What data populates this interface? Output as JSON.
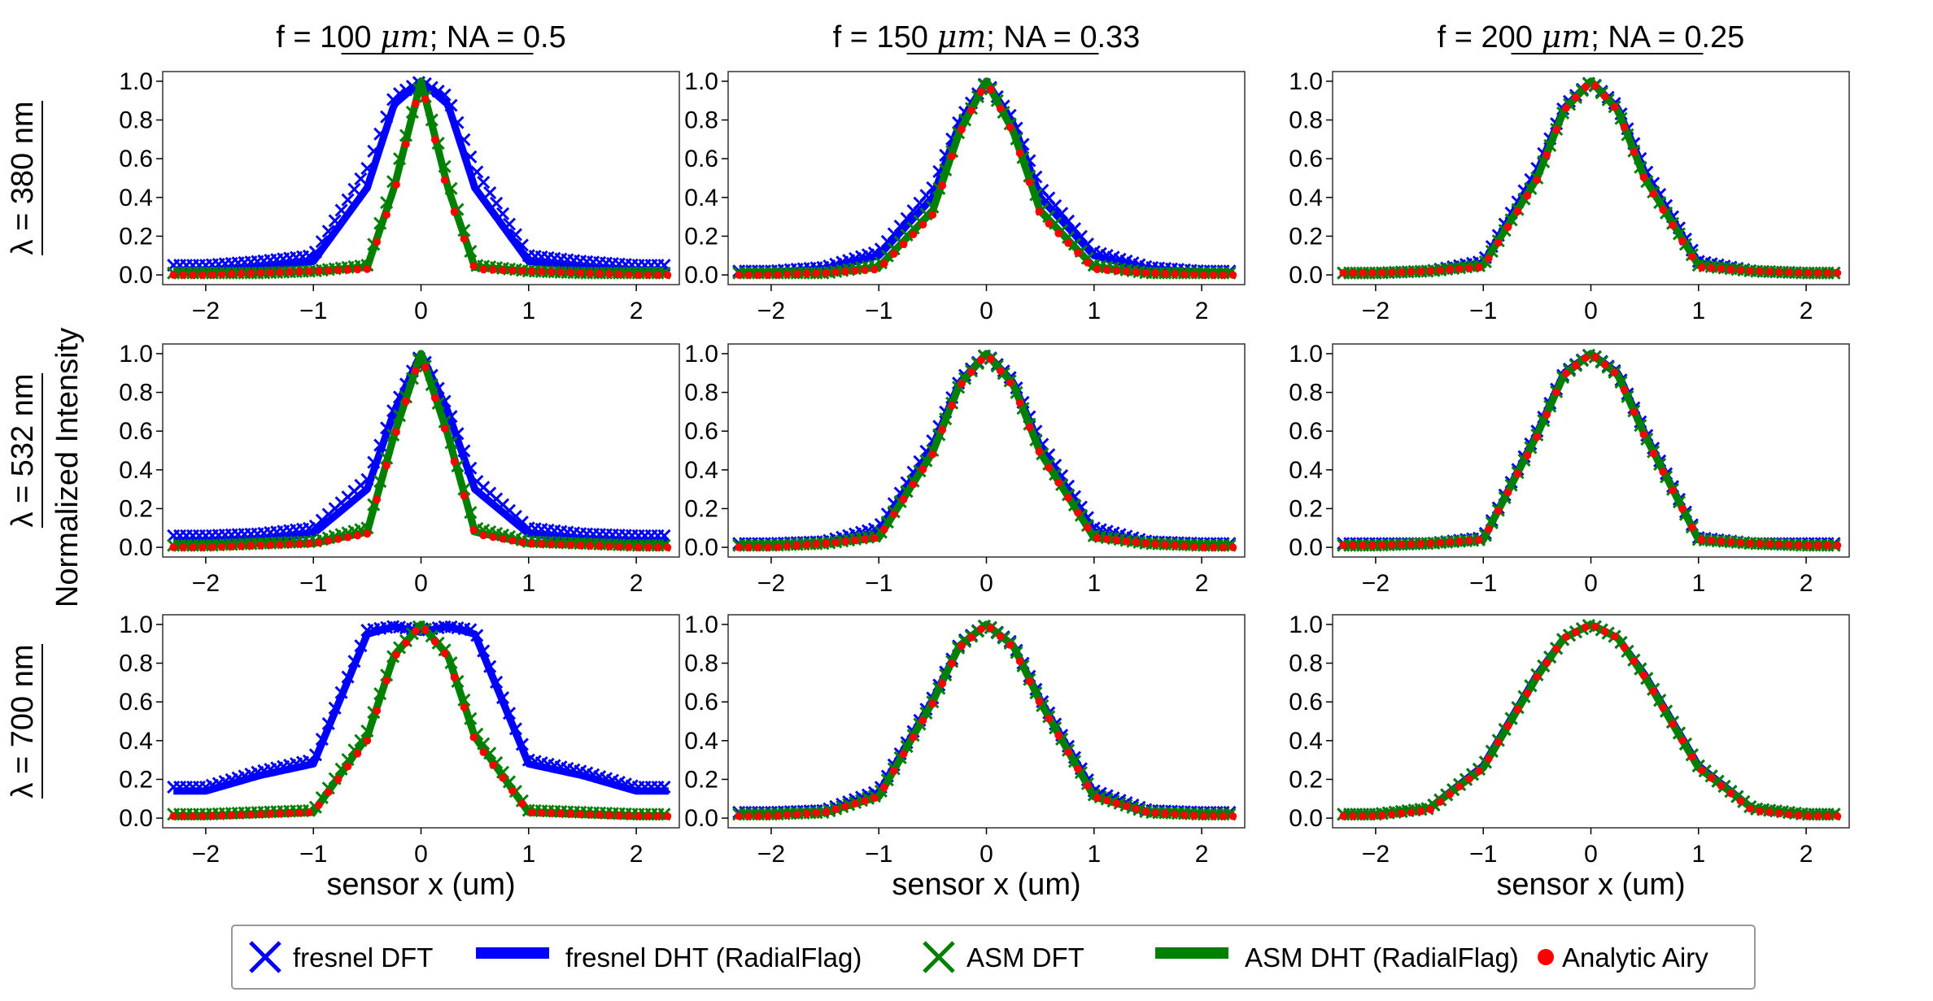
{
  "figure": {
    "column_titles": [
      {
        "prefix": "f = 100 ",
        "unit": "μm",
        "suffix": "; NA = 0.5"
      },
      {
        "prefix": "f = 150 ",
        "unit": "μm",
        "suffix": "; NA = 0.33"
      },
      {
        "prefix": "f = 200 ",
        "unit": "μm",
        "suffix": "; NA = 0.25"
      }
    ],
    "row_labels": [
      "λ = 380 nm",
      "λ = 532 nm",
      "λ = 700 nm"
    ],
    "ylabel": "Normalized Intensity",
    "xlabel": "sensor x (um)",
    "x_ticks": [
      -2,
      -1,
      0,
      1,
      2
    ],
    "y_ticks": [
      "0.0",
      "0.2",
      "0.4",
      "0.6",
      "0.8",
      "1.0"
    ],
    "legend": [
      {
        "label": "fresnel DFT",
        "marker": "x",
        "color": "#0000ff"
      },
      {
        "label": "fresnel DHT (RadialFlag)",
        "marker": "line",
        "color": "#0000ff"
      },
      {
        "label": "ASM DFT",
        "marker": "x",
        "color": "#008000"
      },
      {
        "label": "ASM DHT (RadialFlag)",
        "marker": "line",
        "color": "#008000"
      },
      {
        "label": "Analytic Airy",
        "marker": "dot",
        "color": "#ff0000"
      }
    ],
    "colors": {
      "fresnel": "#0000ff",
      "asm": "#008000",
      "airy": "#ff0000"
    }
  },
  "chart_data": [
    {
      "type": "line",
      "row": 0,
      "col": 0,
      "xlim": [
        -2.4,
        2.4
      ],
      "ylim": [
        -0.05,
        1.05
      ],
      "x": [
        -2.0,
        -1.5,
        -1.0,
        -0.5,
        -0.25,
        0.0,
        0.25,
        0.5,
        1.0,
        1.5,
        2.0
      ],
      "series": [
        {
          "name": "fresnel DFT",
          "values": [
            0.05,
            0.07,
            0.1,
            0.55,
            0.92,
            1.0,
            0.92,
            0.55,
            0.1,
            0.07,
            0.05
          ]
        },
        {
          "name": "fresnel DHT (RadialFlag)",
          "values": [
            0.02,
            0.04,
            0.07,
            0.45,
            0.88,
            1.0,
            0.88,
            0.45,
            0.07,
            0.04,
            0.02
          ]
        },
        {
          "name": "ASM DFT",
          "values": [
            0.01,
            0.01,
            0.02,
            0.05,
            0.5,
            1.0,
            0.5,
            0.05,
            0.02,
            0.01,
            0.01
          ]
        },
        {
          "name": "ASM DHT (RadialFlag)",
          "values": [
            0.01,
            0.01,
            0.02,
            0.04,
            0.45,
            1.0,
            0.45,
            0.04,
            0.02,
            0.01,
            0.01
          ]
        },
        {
          "name": "Analytic Airy",
          "values": [
            0.0,
            0.01,
            0.02,
            0.03,
            0.42,
            1.0,
            0.42,
            0.03,
            0.02,
            0.01,
            0.0
          ]
        }
      ]
    },
    {
      "type": "line",
      "row": 0,
      "col": 1,
      "xlim": [
        -2.4,
        2.4
      ],
      "ylim": [
        -0.05,
        1.05
      ],
      "x": [
        -2.0,
        -1.5,
        -1.0,
        -0.5,
        -0.25,
        0.0,
        0.25,
        0.5,
        1.0,
        1.5,
        2.0
      ],
      "series": [
        {
          "name": "fresnel DFT",
          "values": [
            0.02,
            0.04,
            0.12,
            0.45,
            0.8,
            1.0,
            0.8,
            0.45,
            0.12,
            0.04,
            0.02
          ]
        },
        {
          "name": "fresnel DHT (RadialFlag)",
          "values": [
            0.01,
            0.03,
            0.1,
            0.4,
            0.78,
            1.0,
            0.78,
            0.4,
            0.1,
            0.03,
            0.01
          ]
        },
        {
          "name": "ASM DFT",
          "values": [
            0.01,
            0.01,
            0.05,
            0.35,
            0.75,
            1.0,
            0.75,
            0.35,
            0.05,
            0.01,
            0.01
          ]
        },
        {
          "name": "ASM DHT (RadialFlag)",
          "values": [
            0.01,
            0.01,
            0.04,
            0.33,
            0.74,
            1.0,
            0.74,
            0.33,
            0.04,
            0.01,
            0.01
          ]
        },
        {
          "name": "Analytic Airy",
          "values": [
            0.0,
            0.01,
            0.03,
            0.31,
            0.73,
            1.0,
            0.73,
            0.31,
            0.03,
            0.01,
            0.0
          ]
        }
      ]
    },
    {
      "type": "line",
      "row": 0,
      "col": 2,
      "xlim": [
        -2.4,
        2.4
      ],
      "ylim": [
        -0.05,
        1.05
      ],
      "x": [
        -2.0,
        -1.5,
        -1.0,
        -0.5,
        -0.25,
        0.0,
        0.25,
        0.5,
        1.0,
        1.5,
        2.0
      ],
      "series": [
        {
          "name": "fresnel DFT",
          "values": [
            0.01,
            0.02,
            0.07,
            0.55,
            0.87,
            1.0,
            0.87,
            0.55,
            0.07,
            0.02,
            0.01
          ]
        },
        {
          "name": "fresnel DHT (RadialFlag)",
          "values": [
            0.01,
            0.02,
            0.06,
            0.53,
            0.86,
            1.0,
            0.86,
            0.53,
            0.06,
            0.02,
            0.01
          ]
        },
        {
          "name": "ASM DFT",
          "values": [
            0.01,
            0.02,
            0.05,
            0.5,
            0.85,
            1.0,
            0.85,
            0.5,
            0.05,
            0.02,
            0.01
          ]
        },
        {
          "name": "ASM DHT (RadialFlag)",
          "values": [
            0.01,
            0.02,
            0.05,
            0.5,
            0.85,
            1.0,
            0.85,
            0.5,
            0.05,
            0.02,
            0.01
          ]
        },
        {
          "name": "Analytic Airy",
          "values": [
            0.01,
            0.02,
            0.04,
            0.49,
            0.85,
            1.0,
            0.85,
            0.49,
            0.04,
            0.02,
            0.01
          ]
        }
      ]
    },
    {
      "type": "line",
      "row": 1,
      "col": 0,
      "xlim": [
        -2.4,
        2.4
      ],
      "ylim": [
        -0.05,
        1.05
      ],
      "x": [
        -2.0,
        -1.5,
        -1.0,
        -0.5,
        -0.25,
        0.0,
        0.25,
        0.5,
        1.0,
        1.5,
        2.0
      ],
      "series": [
        {
          "name": "fresnel DFT",
          "values": [
            0.06,
            0.07,
            0.1,
            0.35,
            0.72,
            1.0,
            0.72,
            0.35,
            0.1,
            0.07,
            0.06
          ]
        },
        {
          "name": "fresnel DHT (RadialFlag)",
          "values": [
            0.03,
            0.04,
            0.07,
            0.3,
            0.7,
            1.0,
            0.7,
            0.3,
            0.07,
            0.04,
            0.03
          ]
        },
        {
          "name": "ASM DFT",
          "values": [
            0.01,
            0.02,
            0.03,
            0.1,
            0.6,
            1.0,
            0.6,
            0.1,
            0.03,
            0.02,
            0.01
          ]
        },
        {
          "name": "ASM DHT (RadialFlag)",
          "values": [
            0.01,
            0.02,
            0.02,
            0.08,
            0.58,
            1.0,
            0.58,
            0.08,
            0.02,
            0.02,
            0.01
          ]
        },
        {
          "name": "Analytic Airy",
          "values": [
            0.0,
            0.01,
            0.02,
            0.07,
            0.56,
            1.0,
            0.56,
            0.07,
            0.02,
            0.01,
            0.0
          ]
        }
      ]
    },
    {
      "type": "line",
      "row": 1,
      "col": 1,
      "xlim": [
        -2.4,
        2.4
      ],
      "ylim": [
        -0.05,
        1.05
      ],
      "x": [
        -2.0,
        -1.5,
        -1.0,
        -0.5,
        -0.25,
        0.0,
        0.25,
        0.5,
        1.0,
        1.5,
        2.0
      ],
      "series": [
        {
          "name": "fresnel DFT",
          "values": [
            0.02,
            0.03,
            0.1,
            0.55,
            0.86,
            1.0,
            0.86,
            0.55,
            0.1,
            0.03,
            0.02
          ]
        },
        {
          "name": "fresnel DHT (RadialFlag)",
          "values": [
            0.01,
            0.02,
            0.08,
            0.52,
            0.85,
            1.0,
            0.85,
            0.52,
            0.08,
            0.02,
            0.01
          ]
        },
        {
          "name": "ASM DFT",
          "values": [
            0.01,
            0.02,
            0.06,
            0.5,
            0.84,
            1.0,
            0.84,
            0.5,
            0.06,
            0.02,
            0.01
          ]
        },
        {
          "name": "ASM DHT (RadialFlag)",
          "values": [
            0.01,
            0.02,
            0.05,
            0.49,
            0.84,
            1.0,
            0.84,
            0.49,
            0.05,
            0.02,
            0.01
          ]
        },
        {
          "name": "Analytic Airy",
          "values": [
            0.0,
            0.02,
            0.05,
            0.48,
            0.83,
            1.0,
            0.83,
            0.48,
            0.05,
            0.02,
            0.0
          ]
        }
      ]
    },
    {
      "type": "line",
      "row": 1,
      "col": 2,
      "xlim": [
        -2.4,
        2.4
      ],
      "ylim": [
        -0.05,
        1.05
      ],
      "x": [
        -2.0,
        -1.5,
        -1.0,
        -0.5,
        -0.25,
        0.0,
        0.25,
        0.5,
        1.0,
        1.5,
        2.0
      ],
      "series": [
        {
          "name": "fresnel DFT",
          "values": [
            0.02,
            0.02,
            0.05,
            0.6,
            0.9,
            1.0,
            0.9,
            0.6,
            0.05,
            0.02,
            0.02
          ]
        },
        {
          "name": "fresnel DHT (RadialFlag)",
          "values": [
            0.01,
            0.02,
            0.04,
            0.59,
            0.9,
            1.0,
            0.9,
            0.59,
            0.04,
            0.02,
            0.01
          ]
        },
        {
          "name": "ASM DFT",
          "values": [
            0.01,
            0.02,
            0.04,
            0.58,
            0.89,
            1.0,
            0.89,
            0.58,
            0.04,
            0.02,
            0.01
          ]
        },
        {
          "name": "ASM DHT (RadialFlag)",
          "values": [
            0.01,
            0.02,
            0.04,
            0.58,
            0.89,
            1.0,
            0.89,
            0.58,
            0.04,
            0.02,
            0.01
          ]
        },
        {
          "name": "Analytic Airy",
          "values": [
            0.01,
            0.02,
            0.04,
            0.57,
            0.89,
            1.0,
            0.89,
            0.57,
            0.04,
            0.02,
            0.01
          ]
        }
      ]
    },
    {
      "type": "line",
      "row": 2,
      "col": 0,
      "xlim": [
        -2.4,
        2.4
      ],
      "ylim": [
        -0.05,
        1.05
      ],
      "x": [
        -2.0,
        -1.5,
        -1.0,
        -0.5,
        -0.25,
        0.0,
        0.25,
        0.5,
        1.0,
        1.5,
        2.0
      ],
      "series": [
        {
          "name": "fresnel DFT",
          "values": [
            0.16,
            0.24,
            0.3,
            0.97,
            0.99,
            0.97,
            0.99,
            0.97,
            0.3,
            0.24,
            0.16
          ]
        },
        {
          "name": "fresnel DHT (RadialFlag)",
          "values": [
            0.14,
            0.22,
            0.28,
            0.95,
            0.99,
            0.96,
            0.99,
            0.95,
            0.28,
            0.22,
            0.14
          ]
        },
        {
          "name": "ASM DFT",
          "values": [
            0.02,
            0.03,
            0.04,
            0.45,
            0.85,
            1.0,
            0.85,
            0.45,
            0.04,
            0.03,
            0.02
          ]
        },
        {
          "name": "ASM DHT (RadialFlag)",
          "values": [
            0.01,
            0.02,
            0.03,
            0.42,
            0.84,
            1.0,
            0.84,
            0.42,
            0.03,
            0.02,
            0.01
          ]
        },
        {
          "name": "Analytic Airy",
          "values": [
            0.01,
            0.02,
            0.03,
            0.4,
            0.83,
            1.0,
            0.83,
            0.4,
            0.03,
            0.02,
            0.01
          ]
        }
      ]
    },
    {
      "type": "line",
      "row": 2,
      "col": 1,
      "xlim": [
        -2.4,
        2.4
      ],
      "ylim": [
        -0.05,
        1.05
      ],
      "x": [
        -2.0,
        -1.5,
        -1.0,
        -0.5,
        -0.25,
        0.0,
        0.25,
        0.5,
        1.0,
        1.5,
        2.0
      ],
      "series": [
        {
          "name": "fresnel DFT",
          "values": [
            0.03,
            0.04,
            0.14,
            0.62,
            0.9,
            1.0,
            0.9,
            0.62,
            0.14,
            0.04,
            0.03
          ]
        },
        {
          "name": "fresnel DHT (RadialFlag)",
          "values": [
            0.02,
            0.03,
            0.13,
            0.61,
            0.89,
            1.0,
            0.89,
            0.61,
            0.13,
            0.03,
            0.02
          ]
        },
        {
          "name": "ASM DFT",
          "values": [
            0.02,
            0.03,
            0.12,
            0.6,
            0.89,
            1.0,
            0.89,
            0.6,
            0.12,
            0.03,
            0.02
          ]
        },
        {
          "name": "ASM DHT (RadialFlag)",
          "values": [
            0.02,
            0.03,
            0.11,
            0.6,
            0.89,
            1.0,
            0.89,
            0.6,
            0.11,
            0.03,
            0.02
          ]
        },
        {
          "name": "Analytic Airy",
          "values": [
            0.01,
            0.03,
            0.11,
            0.59,
            0.88,
            1.0,
            0.88,
            0.59,
            0.11,
            0.03,
            0.01
          ]
        }
      ]
    },
    {
      "type": "line",
      "row": 2,
      "col": 2,
      "xlim": [
        -2.4,
        2.4
      ],
      "ylim": [
        -0.05,
        1.05
      ],
      "x": [
        -2.0,
        -1.5,
        -1.0,
        -0.5,
        -0.25,
        0.0,
        0.25,
        0.5,
        1.0,
        1.5,
        2.0
      ],
      "series": [
        {
          "name": "fresnel DFT",
          "values": [
            0.02,
            0.05,
            0.27,
            0.74,
            0.93,
            1.0,
            0.93,
            0.74,
            0.27,
            0.05,
            0.02
          ]
        },
        {
          "name": "fresnel DHT (RadialFlag)",
          "values": [
            0.02,
            0.05,
            0.27,
            0.74,
            0.93,
            1.0,
            0.93,
            0.74,
            0.27,
            0.05,
            0.02
          ]
        },
        {
          "name": "ASM DFT",
          "values": [
            0.02,
            0.05,
            0.27,
            0.74,
            0.93,
            1.0,
            0.93,
            0.74,
            0.27,
            0.05,
            0.02
          ]
        },
        {
          "name": "ASM DHT (RadialFlag)",
          "values": [
            0.02,
            0.05,
            0.26,
            0.73,
            0.93,
            1.0,
            0.93,
            0.73,
            0.26,
            0.05,
            0.02
          ]
        },
        {
          "name": "Analytic Airy",
          "values": [
            0.01,
            0.04,
            0.26,
            0.73,
            0.93,
            1.0,
            0.93,
            0.73,
            0.26,
            0.04,
            0.01
          ]
        }
      ]
    }
  ]
}
